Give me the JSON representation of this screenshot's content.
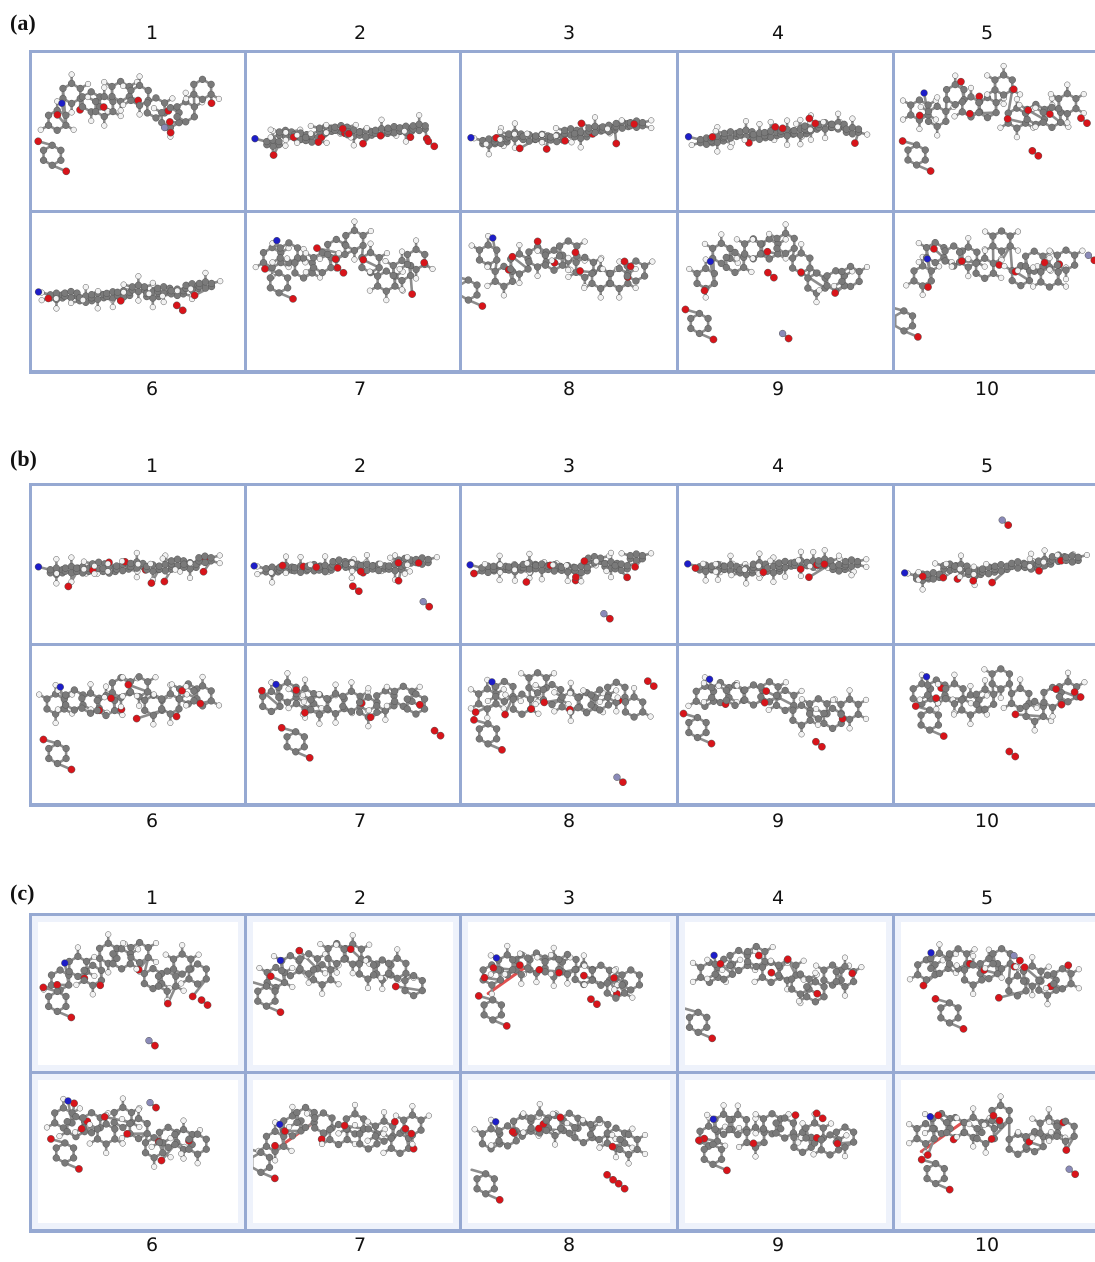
{
  "panels": [
    {
      "id": "a",
      "label": "(a)",
      "top_numbers": [
        "1",
        "2",
        "3",
        "4",
        "5"
      ],
      "bottom_numbers": [
        "6",
        "7",
        "8",
        "9",
        "10"
      ]
    },
    {
      "id": "b",
      "label": "(b)",
      "top_numbers": [
        "1",
        "2",
        "3",
        "4",
        "5"
      ],
      "bottom_numbers": [
        "6",
        "7",
        "8",
        "9",
        "10"
      ]
    },
    {
      "id": "c",
      "label": "(c)",
      "top_numbers": [
        "1",
        "2",
        "3",
        "4",
        "5"
      ],
      "bottom_numbers": [
        "6",
        "7",
        "8",
        "9",
        "10"
      ]
    }
  ],
  "colors": {
    "frame": "#96a9d2",
    "carbon": "#7a7a7a",
    "hydrogen": "#f2f2f2",
    "oxygen": "#d8141a",
    "nitrogen": "#1d1dc8",
    "metal": "#8a8ab8",
    "sulfur": "#e6e62a",
    "bond_highlight": "#e05050"
  }
}
